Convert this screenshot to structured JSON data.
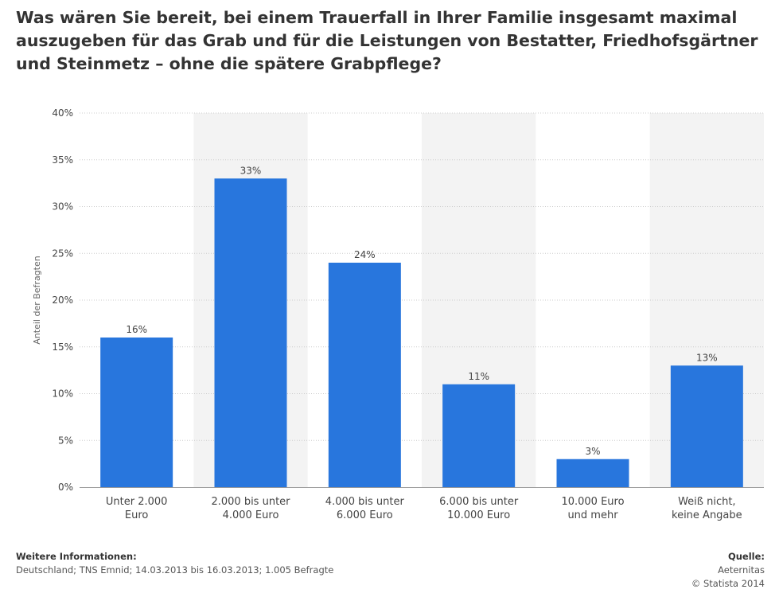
{
  "title": "Was wären Sie bereit, bei einem Trauerfall in Ihrer Familie insgesamt maximal auszugeben für das Grab und für die Leistungen von Bestatter, Friedhofsgärtner und Steinmetz – ohne die spätere Grabpflege?",
  "footer": {
    "info_heading": "Weitere Informationen:",
    "info_text": "Deutschland; TNS Emnid; 14.03.2013 bis 16.03.2013; 1.005 Befragte",
    "source_heading": "Quelle:",
    "source_text": "Aeternitas",
    "copyright": "© Statista 2014"
  },
  "colors": {
    "bar": "#2876dd",
    "band": "#f3f3f3",
    "grid": "#cccccc",
    "axis": "#999999",
    "text": "#444444"
  },
  "chart_data": {
    "type": "bar",
    "categories": [
      [
        "Unter 2.000",
        "Euro"
      ],
      [
        "2.000 bis unter",
        "4.000 Euro"
      ],
      [
        "4.000 bis unter",
        "6.000 Euro"
      ],
      [
        "6.000 bis unter",
        "10.000 Euro"
      ],
      [
        "10.000 Euro",
        "und mehr"
      ],
      [
        "Weiß nicht,",
        "keine Angabe"
      ]
    ],
    "values": [
      16,
      33,
      24,
      11,
      3,
      13
    ],
    "value_labels": [
      "16%",
      "33%",
      "24%",
      "11%",
      "3%",
      "13%"
    ],
    "ylabel": "Anteil der Befragten",
    "ylim": [
      0,
      40
    ],
    "yticks": [
      0,
      5,
      10,
      15,
      20,
      25,
      30,
      35,
      40
    ],
    "ytick_labels": [
      "0%",
      "5%",
      "10%",
      "15%",
      "20%",
      "25%",
      "30%",
      "35%",
      "40%"
    ],
    "grid": true
  }
}
